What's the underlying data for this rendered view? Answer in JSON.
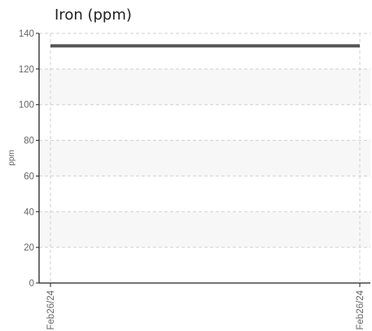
{
  "chart_data": {
    "type": "line",
    "title": "Iron (ppm)",
    "xlabel": "",
    "ylabel": "ppm",
    "ylim": [
      0,
      140
    ],
    "y_ticks": [
      "0",
      "20",
      "40",
      "60",
      "80",
      "100",
      "120",
      "140"
    ],
    "x_tick_labels": [
      "Feb26/24",
      "Feb26/24"
    ],
    "grid": true,
    "alternating_bands": true,
    "series": [
      {
        "x": [
          "Feb26/24",
          "Feb26/24"
        ],
        "values": [
          133,
          133
        ],
        "color": "#555555"
      }
    ],
    "colors": {
      "axis": "#222222",
      "grid": "#d0d0d0",
      "band": "#f7f7f7",
      "text": "#666666"
    }
  }
}
